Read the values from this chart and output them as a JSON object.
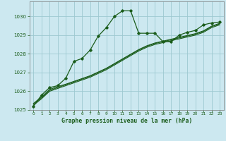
{
  "title": "Graphe pression niveau de la mer (hPa)",
  "bg_color": "#cce8f0",
  "grid_color": "#9dc8d0",
  "line_color": "#1a5c1a",
  "xlim": [
    -0.5,
    23.5
  ],
  "ylim": [
    1025.0,
    1030.8
  ],
  "yticks": [
    1025,
    1026,
    1027,
    1028,
    1029,
    1030
  ],
  "xticks": [
    0,
    1,
    2,
    3,
    4,
    5,
    6,
    7,
    8,
    9,
    10,
    11,
    12,
    13,
    14,
    15,
    16,
    17,
    18,
    19,
    20,
    21,
    22,
    23
  ],
  "spike_x": [
    0,
    1,
    2,
    3,
    4,
    5,
    6,
    7,
    8,
    9,
    10,
    11,
    12,
    13,
    14,
    15,
    16,
    17,
    18,
    19,
    20,
    21,
    22,
    23
  ],
  "spike_y": [
    1025.2,
    1025.8,
    1026.2,
    1026.3,
    1026.7,
    1027.6,
    1027.75,
    1028.2,
    1028.95,
    1029.4,
    1030.0,
    1030.3,
    1030.3,
    1029.1,
    1029.1,
    1029.1,
    1028.65,
    1028.65,
    1029.0,
    1029.15,
    1029.25,
    1029.55,
    1029.65,
    1029.7
  ],
  "linear1_x": [
    0,
    1,
    2,
    3,
    4,
    5,
    6,
    7,
    8,
    9,
    10,
    11,
    12,
    13,
    14,
    15,
    16,
    17,
    18,
    19,
    20,
    21,
    22,
    23
  ],
  "linear1_y": [
    1025.3,
    1025.65,
    1026.05,
    1026.2,
    1026.35,
    1026.5,
    1026.65,
    1026.8,
    1027.0,
    1027.2,
    1027.45,
    1027.7,
    1027.95,
    1028.2,
    1028.4,
    1028.55,
    1028.65,
    1028.75,
    1028.85,
    1028.95,
    1029.05,
    1029.2,
    1029.45,
    1029.6
  ],
  "linear2_x": [
    0,
    1,
    2,
    3,
    4,
    5,
    6,
    7,
    8,
    9,
    10,
    11,
    12,
    13,
    14,
    15,
    16,
    17,
    18,
    19,
    20,
    21,
    22,
    23
  ],
  "linear2_y": [
    1025.35,
    1025.7,
    1026.1,
    1026.25,
    1026.38,
    1026.53,
    1026.68,
    1026.83,
    1027.03,
    1027.23,
    1027.48,
    1027.73,
    1027.98,
    1028.23,
    1028.43,
    1028.58,
    1028.68,
    1028.78,
    1028.88,
    1028.98,
    1029.08,
    1029.23,
    1029.48,
    1029.63
  ],
  "linear3_x": [
    0,
    1,
    2,
    3,
    4,
    5,
    6,
    7,
    8,
    9,
    10,
    11,
    12,
    13,
    14,
    15,
    16,
    17,
    18,
    19,
    20,
    21,
    22,
    23
  ],
  "linear3_y": [
    1025.25,
    1025.6,
    1026.0,
    1026.15,
    1026.3,
    1026.45,
    1026.6,
    1026.75,
    1026.95,
    1027.15,
    1027.4,
    1027.65,
    1027.9,
    1028.15,
    1028.35,
    1028.5,
    1028.6,
    1028.7,
    1028.8,
    1028.9,
    1029.0,
    1029.15,
    1029.4,
    1029.55
  ]
}
